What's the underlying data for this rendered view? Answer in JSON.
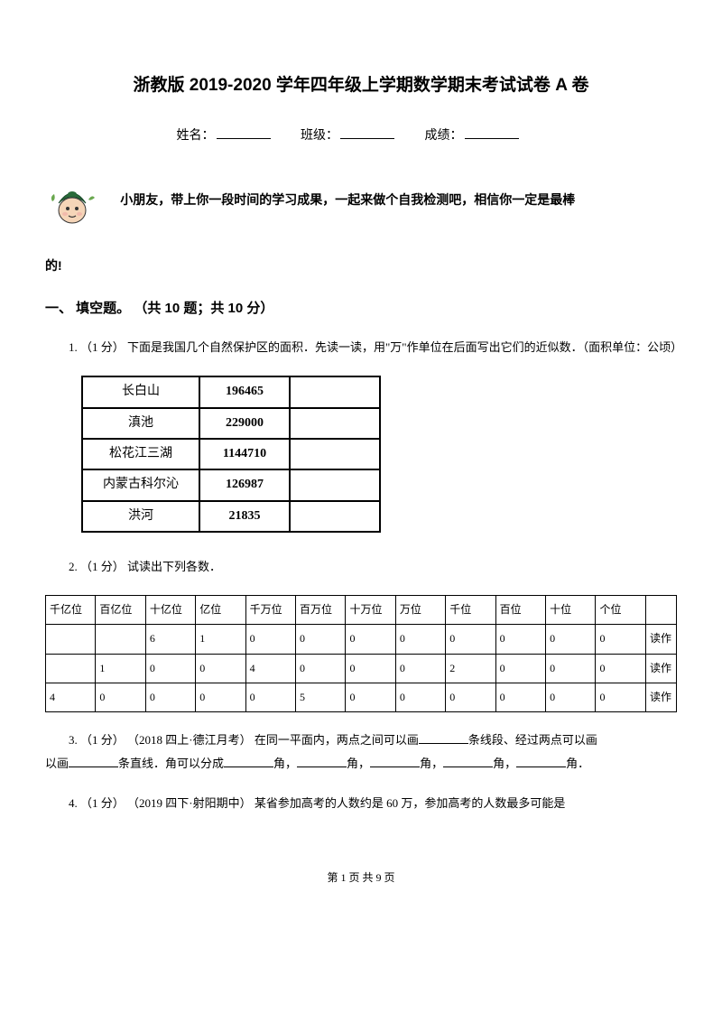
{
  "title": "浙教版 2019-2020 学年四年级上学期数学期末考试试卷 A 卷",
  "form": {
    "name_label": "姓名：",
    "class_label": "班级：",
    "score_label": "成绩："
  },
  "intro_line1": "小朋友，带上你一段时间的学习成果，一起来做个自我检测吧，相信你一定是最棒",
  "intro_line2": "的!",
  "section1": {
    "heading": "一、 填空题。 （共 10 题；共 10 分）",
    "q1": {
      "text": "1. （1 分） 下面是我国几个自然保护区的面积．先读一读，用\"万\"作单位在后面写出它们的近似数．（面积单位：公顷）",
      "table": {
        "rows": [
          [
            "长白山",
            "196465",
            ""
          ],
          [
            "滇池",
            "229000",
            ""
          ],
          [
            "松花江三湖",
            "1144710",
            ""
          ],
          [
            "内蒙古科尔沁",
            "126987",
            ""
          ],
          [
            "洪河",
            "21835",
            ""
          ]
        ]
      }
    },
    "q2": {
      "text": "2. （1 分） 试读出下列各数．",
      "headers": [
        "千亿位",
        "百亿位",
        "十亿位",
        "亿位",
        "千万位",
        "百万位",
        "十万位",
        "万位",
        "千位",
        "百位",
        "十位",
        "个位",
        ""
      ],
      "rows": [
        [
          "",
          "",
          "6",
          "1",
          "0",
          "0",
          "0",
          "0",
          "0",
          "0",
          "0",
          "0",
          "读作"
        ],
        [
          "",
          "1",
          "0",
          "0",
          "4",
          "0",
          "0",
          "0",
          "2",
          "0",
          "0",
          "0",
          "读作"
        ],
        [
          "4",
          "0",
          "0",
          "0",
          "0",
          "5",
          "0",
          "0",
          "0",
          "0",
          "0",
          "0",
          "读作"
        ]
      ]
    },
    "q3": {
      "prefix": "3. （1 分） （2018 四上·德江月考） 在同一平面内，两点之间可以画",
      "mid1": "条线段、经过两点可以画",
      "mid2": "条直线．角可以分成",
      "mid3": "角，",
      "mid4": "角，",
      "mid5": "角，",
      "mid6": "角，",
      "suffix": "角．"
    },
    "q4": {
      "text": "4. （1 分） （2019 四下·射阳期中） 某省参加高考的人数约是 60 万，参加高考的人数最多可能是"
    }
  },
  "footer": "第 1 页 共 9 页",
  "colors": {
    "text": "#000000",
    "bg": "#ffffff",
    "border": "#000000"
  },
  "mascot": {
    "cap_fill": "#2a6b3a",
    "face_fill": "#f5d5b8",
    "leaf_fill": "#6aa84f"
  }
}
